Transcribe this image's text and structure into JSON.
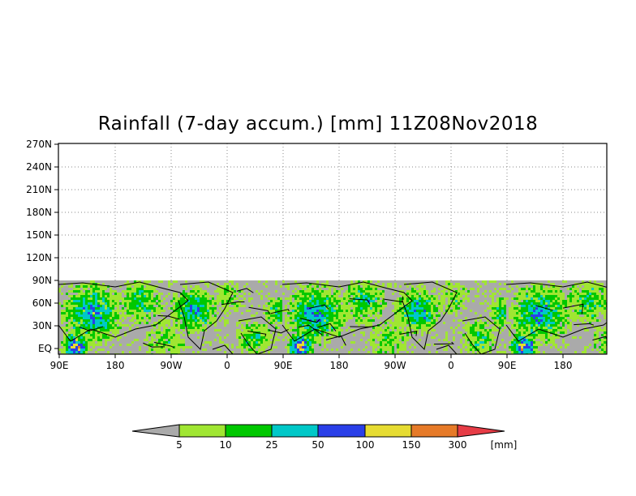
{
  "title": "Rainfall (7-day accum.) [mm] 11Z08Nov2018",
  "map": {
    "projection": "cylindrical lat-lon",
    "data_extent_lat": "EQ to 90N",
    "y_ticks": [
      "270N",
      "240N",
      "210N",
      "180N",
      "150N",
      "120N",
      "90N",
      "60N",
      "30N",
      "EQ"
    ],
    "x_ticks": [
      "90E",
      "180",
      "90W",
      "0",
      "90E",
      "180",
      "90W",
      "0",
      "90E",
      "180"
    ],
    "no_data_color": "#aaaaaa",
    "grid": "dotted"
  },
  "colorbar": {
    "thresholds": [
      "5",
      "10",
      "25",
      "50",
      "100",
      "150",
      "300"
    ],
    "units": "[mm]",
    "colors": [
      "#aaaaaa",
      "#a0e632",
      "#00c800",
      "#00c8c8",
      "#2a3fe8",
      "#e6dc32",
      "#e67a28",
      "#e63c46"
    ]
  }
}
